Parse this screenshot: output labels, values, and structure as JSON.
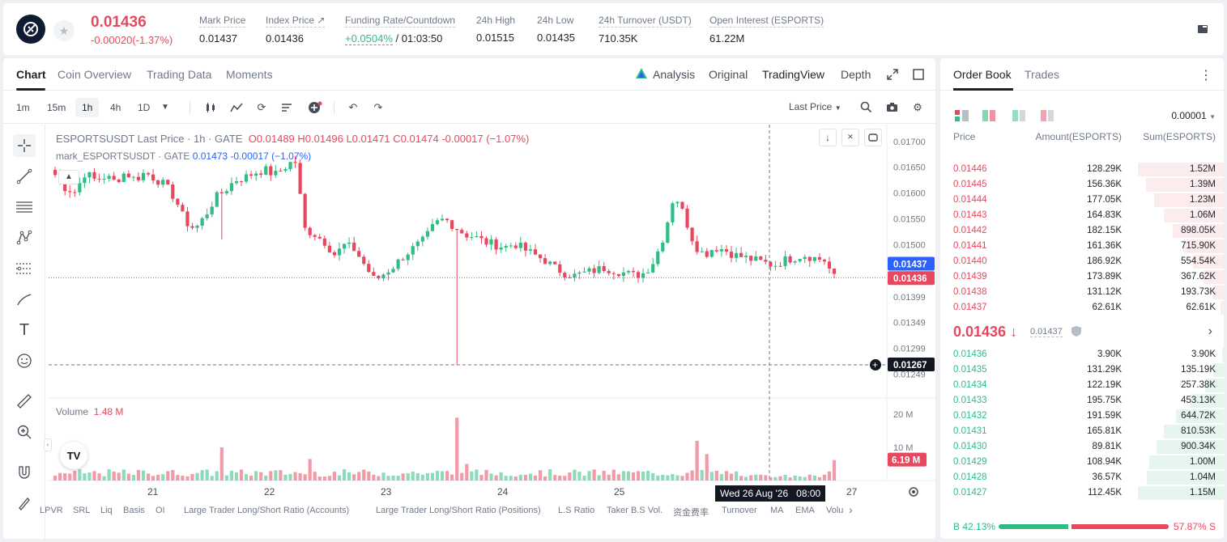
{
  "header": {
    "last_price": "0.01436",
    "change": "-0.00020(-1.37%)",
    "stats": [
      {
        "label": "Mark Price",
        "value": "0.01437"
      },
      {
        "label": "Index Price ↗",
        "value": "0.01436"
      },
      {
        "label": "Funding Rate/Countdown",
        "value": "+0.0504%",
        "value2": " / 01:03:50"
      },
      {
        "label": "24h High",
        "value": "0.01515"
      },
      {
        "label": "24h Low",
        "value": "0.01435"
      },
      {
        "label": "24h Turnover (USDT)",
        "value": "710.35K"
      },
      {
        "label": "Open Interest (ESPORTS)",
        "value": "61.22M"
      }
    ]
  },
  "chart_tabs": [
    "Chart",
    "Coin Overview",
    "Trading Data",
    "Moments"
  ],
  "chart_modes": {
    "analysis": "Analysis",
    "original": "Original",
    "tradingview": "TradingView",
    "depth": "Depth"
  },
  "timeframes": [
    "1m",
    "15m",
    "1h",
    "4h",
    "1D"
  ],
  "price_type": "Last Price",
  "legend": {
    "symbol": "ESPORTSUSDT Last Price · 1h · GATE",
    "o": "O0.01489",
    "h": "H0.01496",
    "l": "L0.01471",
    "c": "C0.01474",
    "chg": "-0.00017 (−1.07%)",
    "mark_label": "mark_ESPORTSUSDT · GATE",
    "mark_val": "0.01473 -0.00017 (−1.07%)"
  },
  "volume_legend": {
    "label": "Volume",
    "value": "1.48 M"
  },
  "price_axis": [
    "0.01700",
    "0.01650",
    "0.01600",
    "0.01550",
    "0.01500",
    "0.01399",
    "0.01349",
    "0.01299",
    "0.01249"
  ],
  "price_labels": {
    "mark": "0.01437",
    "last": "0.01436",
    "cursor": "0.01267"
  },
  "vol_axis": [
    "20 M",
    "10 M"
  ],
  "vol_label": "6.19 M",
  "date_axis": [
    "21",
    "22",
    "23",
    "24",
    "25",
    "27"
  ],
  "crosshair_date": "Wed 26 Aug '26",
  "crosshair_time": "08:00",
  "bottom_indicators": [
    "LPVR",
    "SRL",
    "Liq",
    "Basis",
    "OI",
    "Large Trader Long/Short Ratio (Accounts)",
    "Large Trader Long/Short Ratio (Positions)",
    "L.S Ratio",
    "Taker B.S Vol.",
    "资金费率",
    "Turnover",
    "MA",
    "EMA",
    "Volu"
  ],
  "orderbook": {
    "tabs": [
      "Order Book",
      "Trades"
    ],
    "precision": "0.00001",
    "headers": {
      "price": "Price",
      "amount": "Amount(ESPORTS)",
      "sum": "Sum(ESPORTS)"
    },
    "asks": [
      {
        "price": "0.01446",
        "amount": "128.29K",
        "sum": "1.52M",
        "depth": 1.0
      },
      {
        "price": "0.01445",
        "amount": "156.36K",
        "sum": "1.39M",
        "depth": 0.91
      },
      {
        "price": "0.01444",
        "amount": "177.05K",
        "sum": "1.23M",
        "depth": 0.81
      },
      {
        "price": "0.01443",
        "amount": "164.83K",
        "sum": "1.06M",
        "depth": 0.7
      },
      {
        "price": "0.01442",
        "amount": "182.15K",
        "sum": "898.05K",
        "depth": 0.59
      },
      {
        "price": "0.01441",
        "amount": "161.36K",
        "sum": "715.90K",
        "depth": 0.47
      },
      {
        "price": "0.01440",
        "amount": "186.92K",
        "sum": "554.54K",
        "depth": 0.36
      },
      {
        "price": "0.01439",
        "amount": "173.89K",
        "sum": "367.62K",
        "depth": 0.24
      },
      {
        "price": "0.01438",
        "amount": "131.12K",
        "sum": "193.73K",
        "depth": 0.13
      },
      {
        "price": "0.01437",
        "amount": "62.61K",
        "sum": "62.61K",
        "depth": 0.04
      }
    ],
    "mid_price": "0.01436 ↓",
    "mid_mark": "0.01437",
    "bids": [
      {
        "price": "0.01436",
        "amount": "3.90K",
        "sum": "3.90K",
        "depth": 0.003
      },
      {
        "price": "0.01435",
        "amount": "131.29K",
        "sum": "135.19K",
        "depth": 0.12
      },
      {
        "price": "0.01434",
        "amount": "122.19K",
        "sum": "257.38K",
        "depth": 0.22
      },
      {
        "price": "0.01433",
        "amount": "195.75K",
        "sum": "453.13K",
        "depth": 0.39
      },
      {
        "price": "0.01432",
        "amount": "191.59K",
        "sum": "644.72K",
        "depth": 0.56
      },
      {
        "price": "0.01431",
        "amount": "165.81K",
        "sum": "810.53K",
        "depth": 0.7
      },
      {
        "price": "0.01430",
        "amount": "89.81K",
        "sum": "900.34K",
        "depth": 0.78
      },
      {
        "price": "0.01429",
        "amount": "108.94K",
        "sum": "1.00M",
        "depth": 0.87
      },
      {
        "price": "0.01428",
        "amount": "36.57K",
        "sum": "1.04M",
        "depth": 0.9
      },
      {
        "price": "0.01427",
        "amount": "112.45K",
        "sum": "1.15M",
        "depth": 1.0
      }
    ],
    "buy_ratio": "B 42.13%",
    "sell_ratio": "57.87% S",
    "buy_fraction": 0.4213
  },
  "colors": {
    "up": "#2ebd85",
    "down": "#e8485f",
    "mark": "#2962ff"
  }
}
